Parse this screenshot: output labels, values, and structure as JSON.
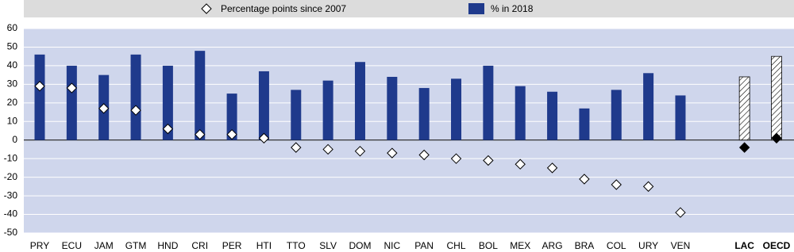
{
  "chart_data": {
    "type": "bar",
    "categories": [
      "PRY",
      "ECU",
      "JAM",
      "GTM",
      "HND",
      "CRI",
      "PER",
      "HTI",
      "TTO",
      "SLV",
      "DOM",
      "NIC",
      "PAN",
      "CHL",
      "BOL",
      "MEX",
      "ARG",
      "BRA",
      "COL",
      "URY",
      "VEN",
      null,
      "LAC",
      "OECD"
    ],
    "highlight": [
      false,
      false,
      false,
      false,
      false,
      false,
      false,
      false,
      false,
      false,
      false,
      false,
      false,
      false,
      false,
      false,
      false,
      false,
      false,
      false,
      false,
      false,
      true,
      true
    ],
    "series": [
      {
        "name": "Percentage points since 2007",
        "type": "scatter",
        "marker": "diamond",
        "color": "#ffffff",
        "highlight_color": "#000000",
        "values": [
          29,
          28,
          17,
          16,
          6,
          3,
          3,
          1,
          -4,
          -5,
          -6,
          -7,
          -8,
          -10,
          -11,
          -13,
          -15,
          -21,
          -24,
          -25,
          -39,
          null,
          -4,
          1
        ]
      },
      {
        "name": "% in 2018",
        "type": "bar",
        "color": "#1f3a8c",
        "values": [
          46,
          40,
          35,
          46,
          40,
          48,
          25,
          37,
          27,
          32,
          42,
          34,
          28,
          33,
          40,
          29,
          26,
          17,
          27,
          36,
          24,
          null,
          34,
          45
        ]
      }
    ],
    "ylim": [
      -50,
      60
    ],
    "yticks": [
      60,
      50,
      40,
      30,
      20,
      10,
      0,
      -10,
      -20,
      -30,
      -40,
      -50
    ],
    "grid": true,
    "legend": "top"
  }
}
